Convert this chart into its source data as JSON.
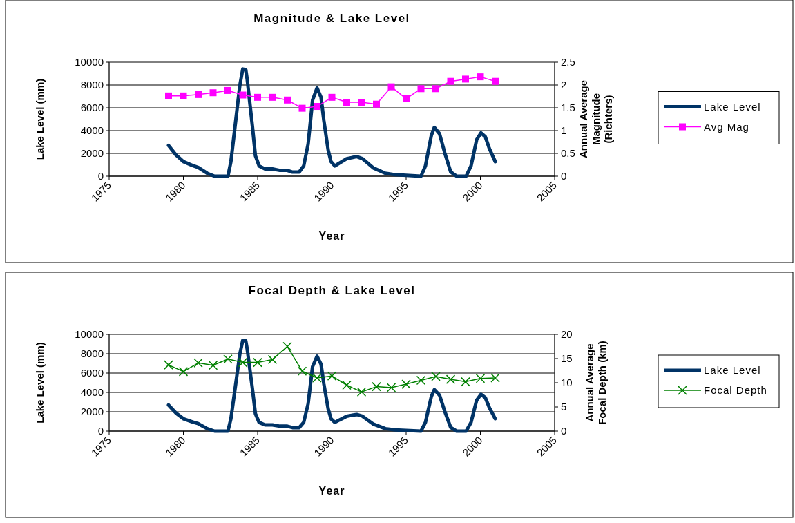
{
  "chart_data": [
    {
      "type": "line",
      "title": "Magnitude & Lake Level",
      "xlabel": "Year",
      "ylabel": "Lake Level (mm)",
      "y2label": "Annual Average Magnitude (Richters)",
      "xlim": [
        1975,
        2005
      ],
      "xticks": [
        1975,
        1980,
        1985,
        1990,
        1995,
        2000,
        2005
      ],
      "ylim": [
        0,
        10000
      ],
      "yticks": [
        0,
        2000,
        4000,
        6000,
        8000,
        10000
      ],
      "y2lim": [
        0,
        2.5
      ],
      "y2ticks": [
        0,
        0.5,
        1,
        1.5,
        2,
        2.5
      ],
      "grid": "y",
      "legend": "right",
      "series": [
        {
          "name": "Lake Level",
          "color": "#003366",
          "marker": "none",
          "x": [
            1979.0,
            1979.5,
            1980.0,
            1980.6,
            1981.0,
            1981.6,
            1982.1,
            1983.0,
            1983.2,
            1983.5,
            1983.8,
            1984.0,
            1984.2,
            1984.3,
            1984.65,
            1984.85,
            1985.1,
            1985.5,
            1986.0,
            1986.5,
            1987.0,
            1987.35,
            1987.8,
            1988.1,
            1988.4,
            1988.7,
            1989.0,
            1989.27,
            1989.46,
            1989.75,
            1989.94,
            1990.2,
            1990.5,
            1991.0,
            1991.67,
            1992.06,
            1992.8,
            1993.6,
            1994.27,
            1995.0,
            1996.0,
            1996.3,
            1996.7,
            1996.9,
            1997.25,
            1997.6,
            1998.0,
            1998.4,
            1999.04,
            1999.37,
            1999.75,
            2000.04,
            2000.33,
            2000.6,
            2001.0
          ],
          "values": [
            2700,
            1870,
            1280,
            950,
            770,
            260,
            0,
            0,
            1280,
            4600,
            7950,
            9400,
            9350,
            8460,
            4360,
            1800,
            900,
            640,
            640,
            510,
            510,
            360,
            360,
            900,
            2820,
            6670,
            7740,
            6920,
            4870,
            2300,
            1280,
            900,
            1150,
            1540,
            1720,
            1540,
            720,
            260,
            130,
            80,
            0,
            900,
            3590,
            4280,
            3720,
            2050,
            380,
            0,
            0,
            900,
            3200,
            3800,
            3460,
            2440,
            1280
          ]
        },
        {
          "name": "Avg Mag",
          "color": "#ff00ff",
          "marker": "square",
          "axis": "y2",
          "x": [
            1979,
            1980,
            1981,
            1982,
            1983,
            1984,
            1985,
            1986,
            1987,
            1988,
            1989,
            1990,
            1991,
            1992,
            1993,
            1994,
            1995,
            1996,
            1997,
            1998,
            1999,
            2000,
            2001
          ],
          "values": [
            1.76,
            1.76,
            1.79,
            1.83,
            1.88,
            1.78,
            1.73,
            1.73,
            1.67,
            1.49,
            1.53,
            1.73,
            1.62,
            1.62,
            1.58,
            1.96,
            1.7,
            1.92,
            1.92,
            2.08,
            2.13,
            2.18,
            2.08
          ]
        }
      ]
    },
    {
      "type": "line",
      "title": "Focal Depth & Lake Level",
      "xlabel": "Year",
      "ylabel": "Lake Level (mm)",
      "y2label": "Annual Average Focal Depth (km)",
      "xlim": [
        1975,
        2005
      ],
      "xticks": [
        1975,
        1980,
        1985,
        1990,
        1995,
        2000,
        2005
      ],
      "ylim": [
        0,
        10000
      ],
      "yticks": [
        0,
        2000,
        4000,
        6000,
        8000,
        10000
      ],
      "y2lim": [
        0,
        20
      ],
      "y2ticks": [
        0,
        5,
        10,
        15,
        20
      ],
      "grid": "y",
      "legend": "right",
      "series": [
        {
          "name": "Lake Level",
          "color": "#003366",
          "marker": "none",
          "x": [
            1979.0,
            1979.5,
            1980.0,
            1980.6,
            1981.0,
            1981.6,
            1982.1,
            1983.0,
            1983.2,
            1983.5,
            1983.8,
            1984.0,
            1984.2,
            1984.3,
            1984.65,
            1984.85,
            1985.1,
            1985.5,
            1986.0,
            1986.5,
            1987.0,
            1987.35,
            1987.8,
            1988.1,
            1988.4,
            1988.7,
            1989.0,
            1989.27,
            1989.46,
            1989.75,
            1989.94,
            1990.2,
            1990.5,
            1991.0,
            1991.67,
            1992.06,
            1992.8,
            1993.6,
            1994.27,
            1995.0,
            1996.0,
            1996.3,
            1996.7,
            1996.9,
            1997.25,
            1997.6,
            1998.0,
            1998.4,
            1999.04,
            1999.37,
            1999.75,
            2000.04,
            2000.33,
            2000.6,
            2001.0
          ],
          "values": [
            2700,
            1870,
            1280,
            950,
            770,
            260,
            0,
            0,
            1280,
            4600,
            7950,
            9400,
            9350,
            8460,
            4360,
            1800,
            900,
            640,
            640,
            510,
            510,
            360,
            360,
            900,
            2820,
            6670,
            7740,
            6920,
            4870,
            2300,
            1280,
            900,
            1150,
            1540,
            1720,
            1540,
            720,
            260,
            130,
            80,
            0,
            900,
            3590,
            4280,
            3720,
            2050,
            380,
            0,
            0,
            900,
            3200,
            3800,
            3460,
            2440,
            1280
          ]
        },
        {
          "name": "Focal Depth",
          "color": "#008000",
          "marker": "cross",
          "axis": "y2",
          "x": [
            1979,
            1980,
            1981,
            1982,
            1983,
            1984,
            1985,
            1986,
            1987,
            1988,
            1989,
            1990,
            1991,
            1992,
            1993,
            1994,
            1995,
            1996,
            1997,
            1998,
            1999,
            2000,
            2001
          ],
          "values": [
            13.7,
            12.3,
            14.1,
            13.6,
            14.9,
            14.2,
            14.2,
            14.8,
            17.5,
            12.4,
            11.0,
            11.4,
            9.5,
            8.1,
            9.2,
            9.0,
            9.7,
            10.5,
            11.3,
            10.7,
            10.2,
            10.9,
            11.0
          ]
        }
      ]
    }
  ]
}
